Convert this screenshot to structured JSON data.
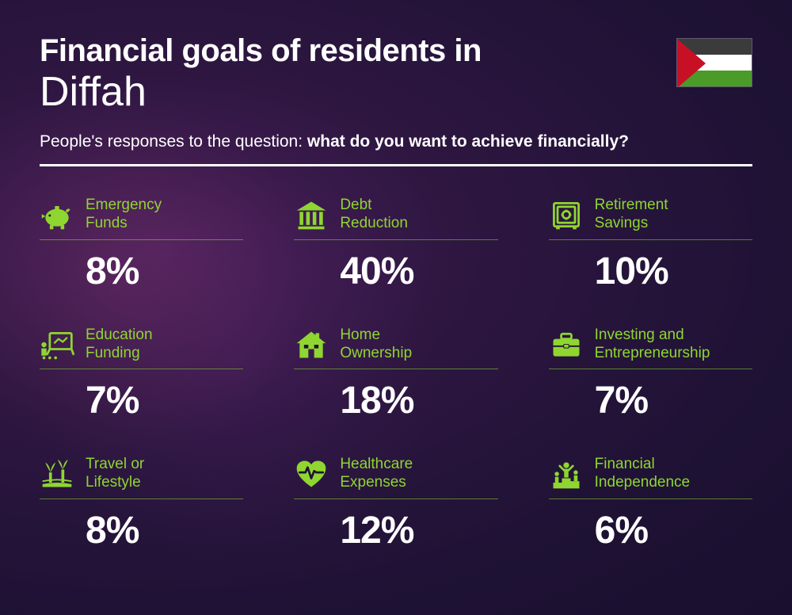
{
  "title": {
    "line1": "Financial goals of residents in",
    "line2": "Diffah"
  },
  "subtitle": {
    "prefix": "People's responses to the question: ",
    "bold": "what do you want to achieve financially?"
  },
  "flag": {
    "stripe1": "#3b3b3b",
    "stripe2": "#ffffff",
    "stripe3": "#4a9b27",
    "triangle": "#c81025",
    "triangle_width": 36
  },
  "colors": {
    "accent": "#8fd630",
    "text": "#ffffff",
    "divider": "#ffffff",
    "item_underline": "rgba(136,214,48,0.55)"
  },
  "typography": {
    "title1_size": 40,
    "title1_weight": 800,
    "title2_size": 52,
    "title2_weight": 300,
    "subtitle_size": 21,
    "label_size": 19,
    "value_size": 48,
    "value_weight": 800
  },
  "layout": {
    "columns": 3,
    "rows": 3,
    "col_gap": 64,
    "row_gap": 42
  },
  "items": [
    {
      "icon": "piggy-bank",
      "label1": "Emergency",
      "label2": "Funds",
      "value": "8%"
    },
    {
      "icon": "bank",
      "label1": "Debt",
      "label2": "Reduction",
      "value": "40%"
    },
    {
      "icon": "safe",
      "label1": "Retirement",
      "label2": "Savings",
      "value": "10%"
    },
    {
      "icon": "education",
      "label1": "Education",
      "label2": "Funding",
      "value": "7%"
    },
    {
      "icon": "home",
      "label1": "Home",
      "label2": "Ownership",
      "value": "18%"
    },
    {
      "icon": "briefcase",
      "label1": "Investing and",
      "label2": "Entrepreneurship",
      "value": "7%"
    },
    {
      "icon": "travel",
      "label1": "Travel or",
      "label2": "Lifestyle",
      "value": "8%"
    },
    {
      "icon": "healthcare",
      "label1": "Healthcare",
      "label2": "Expenses",
      "value": "12%"
    },
    {
      "icon": "independence",
      "label1": "Financial",
      "label2": "Independence",
      "value": "6%"
    }
  ]
}
